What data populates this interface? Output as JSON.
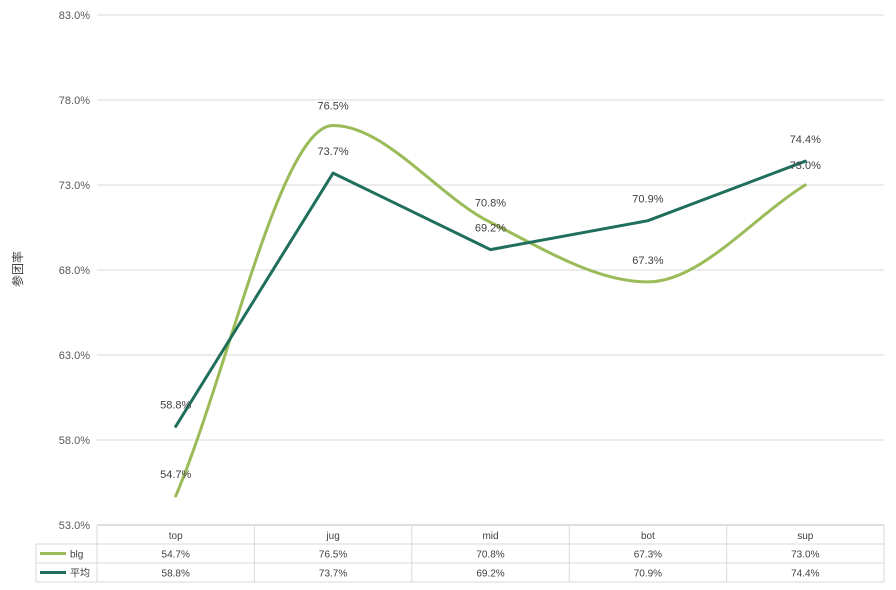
{
  "chart_data": {
    "type": "line",
    "title": "",
    "xlabel": "",
    "ylabel": "参团率",
    "categories": [
      "top",
      "jug",
      "mid",
      "bot",
      "sup"
    ],
    "ylim": [
      53.0,
      83.0
    ],
    "yticks": [
      "53.0%",
      "58.0%",
      "63.0%",
      "68.0%",
      "73.0%",
      "78.0%",
      "83.0%"
    ],
    "grid": true,
    "legend": "data-table",
    "series": [
      {
        "name": "blg",
        "values": [
          54.7,
          76.5,
          70.8,
          67.3,
          73.0
        ],
        "labels": [
          "54.7%",
          "76.5%",
          "70.8%",
          "67.3%",
          "73.0%"
        ],
        "color": "#9bbb59",
        "smooth": true
      },
      {
        "name": "平均",
        "values": [
          58.8,
          73.7,
          69.2,
          70.9,
          74.4
        ],
        "labels": [
          "58.8%",
          "73.7%",
          "69.2%",
          "70.9%",
          "74.4%"
        ],
        "color": "#1f6f5c",
        "smooth": false
      }
    ]
  }
}
